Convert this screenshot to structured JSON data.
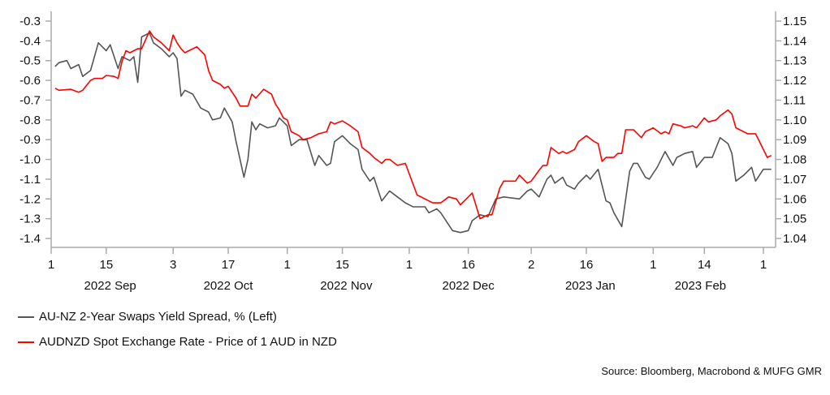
{
  "chart_data": {
    "type": "line",
    "title": "",
    "x_unit": "days since 2022-09-01",
    "xlim": [
      0,
      183
    ],
    "x_ticks": [
      {
        "day": 0,
        "label": "1"
      },
      {
        "day": 14,
        "label": "15"
      },
      {
        "day": 31,
        "label": "3"
      },
      {
        "day": 45,
        "label": "17"
      },
      {
        "day": 60,
        "label": "1"
      },
      {
        "day": 74,
        "label": "15"
      },
      {
        "day": 91,
        "label": "1"
      },
      {
        "day": 106,
        "label": "16"
      },
      {
        "day": 122,
        "label": "2"
      },
      {
        "day": 136,
        "label": "16"
      },
      {
        "day": 153,
        "label": "1"
      },
      {
        "day": 166,
        "label": "14"
      },
      {
        "day": 181,
        "label": "1"
      }
    ],
    "month_labels": [
      {
        "day": 15,
        "label": "2022 Sep"
      },
      {
        "day": 45,
        "label": "2022 Oct"
      },
      {
        "day": 75,
        "label": "2022 Nov"
      },
      {
        "day": 106,
        "label": "2022 Dec"
      },
      {
        "day": 137,
        "label": "2023 Jan"
      },
      {
        "day": 165,
        "label": "2023 Feb"
      }
    ],
    "left_axis": {
      "ylim": [
        -1.4,
        -0.3
      ],
      "ticks": [
        "-0.3",
        "-0.4",
        "-0.5",
        "-0.6",
        "-0.7",
        "-0.8",
        "-0.9",
        "-1.0",
        "-1.1",
        "-1.2",
        "-1.3",
        "-1.4"
      ]
    },
    "right_axis": {
      "ylim": [
        1.04,
        1.15
      ],
      "ticks": [
        "1.15",
        "1.14",
        "1.13",
        "1.12",
        "1.11",
        "1.10",
        "1.09",
        "1.08",
        "1.07",
        "1.06",
        "1.05",
        "1.04"
      ]
    },
    "grid": false,
    "legend_position": "bottom-left",
    "series": [
      {
        "name": "AU-NZ 2-Year Swaps Yield Spread, % (Left)",
        "axis": "left",
        "color": "#555555",
        "points": [
          [
            1,
            -0.53
          ],
          [
            2,
            -0.51
          ],
          [
            4,
            -0.5
          ],
          [
            5,
            -0.54
          ],
          [
            7,
            -0.52
          ],
          [
            8,
            -0.58
          ],
          [
            10,
            -0.55
          ],
          [
            12,
            -0.41
          ],
          [
            14,
            -0.45
          ],
          [
            15,
            -0.42
          ],
          [
            17,
            -0.54
          ],
          [
            18,
            -0.48
          ],
          [
            20,
            -0.5
          ],
          [
            21,
            -0.48
          ],
          [
            22,
            -0.61
          ],
          [
            23,
            -0.38
          ],
          [
            25,
            -0.36
          ],
          [
            26,
            -0.41
          ],
          [
            28,
            -0.44
          ],
          [
            30,
            -0.48
          ],
          [
            31,
            -0.46
          ],
          [
            32,
            -0.49
          ],
          [
            33,
            -0.68
          ],
          [
            34,
            -0.65
          ],
          [
            36,
            -0.67
          ],
          [
            38,
            -0.74
          ],
          [
            40,
            -0.76
          ],
          [
            41,
            -0.8
          ],
          [
            43,
            -0.79
          ],
          [
            44,
            -0.74
          ],
          [
            46,
            -0.81
          ],
          [
            47,
            -0.91
          ],
          [
            49,
            -1.09
          ],
          [
            50,
            -1.0
          ],
          [
            51,
            -0.81
          ],
          [
            52,
            -0.85
          ],
          [
            53,
            -0.82
          ],
          [
            55,
            -0.84
          ],
          [
            57,
            -0.83
          ],
          [
            58,
            -0.79
          ],
          [
            60,
            -0.83
          ],
          [
            61,
            -0.93
          ],
          [
            63,
            -0.9
          ],
          [
            64,
            -0.9
          ],
          [
            65,
            -0.9
          ],
          [
            67,
            -1.03
          ],
          [
            68,
            -0.98
          ],
          [
            70,
            -1.03
          ],
          [
            71,
            -1.02
          ],
          [
            72,
            -0.91
          ],
          [
            74,
            -0.88
          ],
          [
            76,
            -0.92
          ],
          [
            78,
            -0.95
          ],
          [
            79,
            -1.05
          ],
          [
            81,
            -1.11
          ],
          [
            82,
            -1.09
          ],
          [
            84,
            -1.21
          ],
          [
            86,
            -1.16
          ],
          [
            88,
            -1.19
          ],
          [
            90,
            -1.22
          ],
          [
            92,
            -1.24
          ],
          [
            95,
            -1.24
          ],
          [
            96,
            -1.27
          ],
          [
            98,
            -1.25
          ],
          [
            99,
            -1.27
          ],
          [
            102,
            -1.36
          ],
          [
            104,
            -1.37
          ],
          [
            106,
            -1.36
          ],
          [
            107,
            -1.31
          ],
          [
            109,
            -1.28
          ],
          [
            111,
            -1.29
          ],
          [
            113,
            -1.2
          ],
          [
            115,
            -1.19
          ],
          [
            119,
            -1.2
          ],
          [
            121,
            -1.16
          ],
          [
            122,
            -1.15
          ],
          [
            124,
            -1.19
          ],
          [
            126,
            -1.1
          ],
          [
            127,
            -1.08
          ],
          [
            128,
            -1.12
          ],
          [
            130,
            -1.09
          ],
          [
            131,
            -1.13
          ],
          [
            133,
            -1.15
          ],
          [
            134,
            -1.12
          ],
          [
            136,
            -1.08
          ],
          [
            137,
            -1.1
          ],
          [
            139,
            -1.05
          ],
          [
            140,
            -1.13
          ],
          [
            141,
            -1.21
          ],
          [
            142,
            -1.22
          ],
          [
            143,
            -1.27
          ],
          [
            145,
            -1.34
          ],
          [
            147,
            -1.06
          ],
          [
            148,
            -1.02
          ],
          [
            149,
            -1.02
          ],
          [
            151,
            -1.09
          ],
          [
            152,
            -1.1
          ],
          [
            154,
            -1.04
          ],
          [
            156,
            -0.96
          ],
          [
            158,
            -1.03
          ],
          [
            159,
            -0.99
          ],
          [
            161,
            -0.97
          ],
          [
            163,
            -0.96
          ],
          [
            164,
            -1.04
          ],
          [
            166,
            -0.99
          ],
          [
            168,
            -0.99
          ],
          [
            170,
            -0.89
          ],
          [
            172,
            -0.92
          ],
          [
            173,
            -0.97
          ],
          [
            174,
            -1.11
          ],
          [
            176,
            -1.08
          ],
          [
            178,
            -1.04
          ],
          [
            179,
            -1.11
          ],
          [
            181,
            -1.05
          ],
          [
            182,
            -1.05
          ],
          [
            183,
            -1.05
          ]
        ]
      },
      {
        "name": "AUDNZD Spot Exchange Rate - Price of 1 AUD in NZD",
        "axis": "right",
        "color": "#ff0000",
        "points": [
          [
            1,
            1.116
          ],
          [
            2,
            1.115
          ],
          [
            5,
            1.1155
          ],
          [
            7,
            1.114
          ],
          [
            8,
            1.115
          ],
          [
            10,
            1.12
          ],
          [
            11,
            1.121
          ],
          [
            13,
            1.121
          ],
          [
            14,
            1.1225
          ],
          [
            16,
            1.122
          ],
          [
            17,
            1.121
          ],
          [
            18,
            1.1295
          ],
          [
            19,
            1.135
          ],
          [
            20,
            1.134
          ],
          [
            22,
            1.136
          ],
          [
            23,
            1.136
          ],
          [
            25,
            1.145
          ],
          [
            26,
            1.142
          ],
          [
            28,
            1.139
          ],
          [
            30,
            1.135
          ],
          [
            31,
            1.143
          ],
          [
            32,
            1.139
          ],
          [
            33,
            1.136
          ],
          [
            34,
            1.134
          ],
          [
            35,
            1.135
          ],
          [
            37,
            1.137
          ],
          [
            39,
            1.133
          ],
          [
            40,
            1.125
          ],
          [
            41,
            1.12
          ],
          [
            43,
            1.118
          ],
          [
            44,
            1.116
          ],
          [
            45,
            1.117
          ],
          [
            47,
            1.111
          ],
          [
            48,
            1.107
          ],
          [
            50,
            1.107
          ],
          [
            51,
            1.113
          ],
          [
            52,
            1.111
          ],
          [
            54,
            1.1155
          ],
          [
            56,
            1.113
          ],
          [
            57,
            1.108
          ],
          [
            58,
            1.105
          ],
          [
            59,
            1.101
          ],
          [
            60,
            1.1
          ],
          [
            61,
            1.094
          ],
          [
            63,
            1.092
          ],
          [
            64,
            1.09
          ],
          [
            66,
            1.091
          ],
          [
            68,
            1.093
          ],
          [
            70,
            1.094
          ],
          [
            71,
            1.099
          ],
          [
            72,
            1.098
          ],
          [
            74,
            1.0995
          ],
          [
            76,
            1.097
          ],
          [
            78,
            1.094
          ],
          [
            79,
            1.086
          ],
          [
            81,
            1.083
          ],
          [
            82,
            1.081
          ],
          [
            84,
            1.078
          ],
          [
            85,
            1.08
          ],
          [
            86,
            1.08
          ],
          [
            88,
            1.077
          ],
          [
            90,
            1.078
          ],
          [
            93,
            1.062
          ],
          [
            96,
            1.059
          ],
          [
            97,
            1.058
          ],
          [
            99,
            1.058
          ],
          [
            101,
            1.061
          ],
          [
            103,
            1.06
          ],
          [
            104,
            1.057
          ],
          [
            106,
            1.061
          ],
          [
            107,
            1.063
          ],
          [
            109,
            1.05
          ],
          [
            111,
            1.052
          ],
          [
            112,
            1.052
          ],
          [
            114,
            1.0655
          ],
          [
            115,
            1.069
          ],
          [
            118,
            1.069
          ],
          [
            119,
            1.072
          ],
          [
            121,
            1.068
          ],
          [
            122,
            1.069
          ],
          [
            124,
            1.0745
          ],
          [
            125,
            1.077
          ],
          [
            126,
            1.077
          ],
          [
            127,
            1.086
          ],
          [
            129,
            1.083
          ],
          [
            130,
            1.084
          ],
          [
            131,
            1.083
          ],
          [
            133,
            1.085
          ],
          [
            134,
            1.089
          ],
          [
            136,
            1.092
          ],
          [
            138,
            1.089
          ],
          [
            139,
            1.088
          ],
          [
            140,
            1.079
          ],
          [
            141,
            1.081
          ],
          [
            143,
            1.081
          ],
          [
            144,
            1.083
          ],
          [
            145,
            1.083
          ],
          [
            146,
            1.095
          ],
          [
            148,
            1.095
          ],
          [
            149,
            1.093
          ],
          [
            150,
            1.091
          ],
          [
            151,
            1.094
          ],
          [
            153,
            1.096
          ],
          [
            155,
            1.093
          ],
          [
            156,
            1.094
          ],
          [
            157,
            1.093
          ],
          [
            158,
            1.098
          ],
          [
            160,
            1.097
          ],
          [
            161,
            1.096
          ],
          [
            163,
            1.097
          ],
          [
            164,
            1.096
          ],
          [
            166,
            1.101
          ],
          [
            167,
            1.099
          ],
          [
            169,
            1.1
          ],
          [
            170,
            1.102
          ],
          [
            172,
            1.105
          ],
          [
            173,
            1.103
          ],
          [
            174,
            1.096
          ],
          [
            175,
            1.095
          ],
          [
            177,
            1.093
          ],
          [
            179,
            1.093
          ],
          [
            180,
            1.089
          ],
          [
            182,
            1.081
          ],
          [
            183,
            1.082
          ]
        ]
      }
    ],
    "legend": [
      "AU-NZ 2-Year Swaps Yield Spread, % (Left)",
      "AUDNZD Spot Exchange Rate - Price of 1 AUD in NZD"
    ],
    "source": "Source: Bloomberg, Macrobond & MUFG GMR"
  }
}
